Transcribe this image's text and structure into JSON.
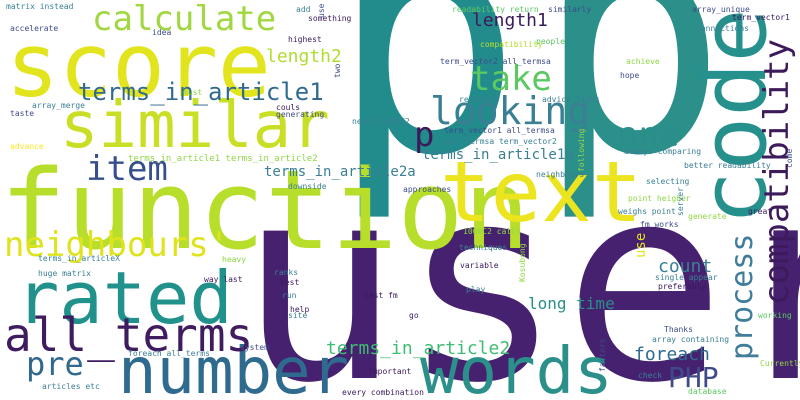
{
  "word_cloud": {
    "words": [
      {
        "text": "user",
        "color": "#46216f"
      },
      {
        "text": "p",
        "color": "#228c8d"
      },
      {
        "text": "p",
        "color": "#2b8f8a"
      },
      {
        "text": "function",
        "color": "#b7de2b"
      },
      {
        "text": "score",
        "color": "#e2e41d"
      },
      {
        "text": "text",
        "color": "#ece41f"
      },
      {
        "text": "similar",
        "color": "#c9df25"
      },
      {
        "text": "code",
        "color": "#26918c"
      },
      {
        "text": "rated",
        "color": "#21918c"
      },
      {
        "text": "words",
        "color": "#2b8f8a"
      },
      {
        "text": "number",
        "color": "#2e6b8e"
      },
      {
        "text": "all_terms",
        "color": "#3f1b60"
      },
      {
        "text": "calculate",
        "color": "#a1d740"
      },
      {
        "text": "compatibility",
        "color": "#3c1a5b"
      },
      {
        "text": "process",
        "color": "#3f7d9a"
      },
      {
        "text": "looking",
        "color": "#3a7f94"
      },
      {
        "text": "take",
        "color": "#5bc862"
      },
      {
        "text": "neighbours'",
        "color": "#dfe31e"
      },
      {
        "text": "one",
        "color": "#2a8e8a"
      },
      {
        "text": "item",
        "color": "#354e8c"
      },
      {
        "text": "pre",
        "color": "#30688e"
      },
      {
        "text": "terms_in_article1",
        "color": "#306a8e"
      },
      {
        "text": "PHP",
        "color": "#3f4a8a"
      },
      {
        "text": "foreach",
        "color": "#306a8e"
      },
      {
        "text": "length2",
        "color": "#b0dc32"
      },
      {
        "text": "length1",
        "color": "#3c1a5b"
      },
      {
        "text": "count",
        "color": "#3a7f94"
      },
      {
        "text": "p",
        "color": "#3c1a5b"
      },
      {
        "text": "use",
        "color": "#e7e31e"
      },
      {
        "text": "terms_in_article2",
        "color": "#3fbc73"
      },
      {
        "text": "long time",
        "color": "#2a8e8a"
      },
      {
        "text": "terms_in_article2a",
        "color": "#3a7f94"
      },
      {
        "text": "terms_in_article1a",
        "color": "#3a7f94"
      },
      {
        "text": "matrix instead",
        "color": "#3a7f94"
      },
      {
        "text": "accelerate",
        "color": "#3e4c8a"
      },
      {
        "text": "idea",
        "color": "#3e4c8a"
      },
      {
        "text": "highest",
        "color": "#3c1a5b"
      },
      {
        "text": "must",
        "color": "#8fd744"
      },
      {
        "text": "taste",
        "color": "#3e4c8a"
      },
      {
        "text": "array_merge",
        "color": "#3a7f94"
      },
      {
        "text": "advance",
        "color": "#fde725"
      },
      {
        "text": "add",
        "color": "#3a7f94"
      },
      {
        "text": "something",
        "color": "#3c1a5b"
      },
      {
        "text": "readability return",
        "color": "#5bc862"
      },
      {
        "text": "similarly",
        "color": "#3e4c8a"
      },
      {
        "text": "array_unique",
        "color": "#3e4c8a"
      },
      {
        "text": "term_vector1",
        "color": "#3c1a5b"
      },
      {
        "text": "connections",
        "color": "#3a7f94"
      },
      {
        "text": "people",
        "color": "#5bc862"
      },
      {
        "text": "compatibility",
        "color": "#b7de2b"
      },
      {
        "text": "term_vector2 all_termsa",
        "color": "#3e4c8a"
      },
      {
        "text": "achieve",
        "color": "#8fd744"
      },
      {
        "text": "hope",
        "color": "#3e4c8a"
      },
      {
        "text": "relation",
        "color": "#3a7f94"
      },
      {
        "text": "advice links",
        "color": "#3a7f94"
      },
      {
        "text": "needs 1000C2",
        "color": "#3a7f94"
      },
      {
        "text": "term_vector1 all_termsa",
        "color": "#3e4c8a"
      },
      {
        "text": "all_termsa term_vector2",
        "color": "#3a7f94"
      },
      {
        "text": "always comparing",
        "color": "#3a7f94"
      },
      {
        "text": "better readability",
        "color": "#3a7f94"
      },
      {
        "text": "couls",
        "color": "#3c1a5b"
      },
      {
        "text": "generating",
        "color": "#3e4c8a"
      },
      {
        "text": "terms_in_article1 terms_in_article2",
        "color": "#8fd744"
      },
      {
        "text": "downside",
        "color": "#3a7f94"
      },
      {
        "text": "approaches",
        "color": "#3e4c8a"
      },
      {
        "text": "neighbours",
        "color": "#3a7f94"
      },
      {
        "text": "selecting",
        "color": "#3a7f94"
      },
      {
        "text": "point heigher",
        "color": "#8fd744"
      },
      {
        "text": "weighs point",
        "color": "#3a7f94"
      },
      {
        "text": "server",
        "color": "#3a7f94"
      },
      {
        "text": "generate",
        "color": "#8fd744"
      },
      {
        "text": "great",
        "color": "#3c1a5b"
      },
      {
        "text": "1000C2 calls",
        "color": "#8fd744"
      },
      {
        "text": "fm works",
        "color": "#3e4c8a"
      },
      {
        "text": "techniques",
        "color": "#3a7f94"
      },
      {
        "text": "terms_in_articleX",
        "color": "#3a7f94"
      },
      {
        "text": "heavy",
        "color": "#8fd744"
      },
      {
        "text": "huge matrix",
        "color": "#3a7f94"
      },
      {
        "text": "way last",
        "color": "#3c1a5b"
      },
      {
        "text": "ranks",
        "color": "#3a7f94"
      },
      {
        "text": "best",
        "color": "#3c1a5b"
      },
      {
        "text": "variable",
        "color": "#3c1a5b"
      },
      {
        "text": "Kosubong",
        "color": "#8fd744"
      },
      {
        "text": "single appear",
        "color": "#3a7f94"
      },
      {
        "text": "preferably",
        "color": "#3c1a5b"
      },
      {
        "text": "play",
        "color": "#3a7f94"
      },
      {
        "text": "last fm",
        "color": "#3c1a5b"
      },
      {
        "text": "run",
        "color": "#3a7f94"
      },
      {
        "text": "help",
        "color": "#3c1a5b"
      },
      {
        "text": "site",
        "color": "#3a7f94"
      },
      {
        "text": "go",
        "color": "#3c1a5b"
      },
      {
        "text": "Thanks",
        "color": "#3e4c8a"
      },
      {
        "text": "array containing",
        "color": "#3a7f94"
      },
      {
        "text": "working",
        "color": "#5bc862"
      },
      {
        "text": "system",
        "color": "#3e4c8a"
      },
      {
        "text": "foreach all_terms",
        "color": "#3a7f94"
      },
      {
        "text": "factors",
        "color": "#3e4c8a"
      },
      {
        "text": "Currently",
        "color": "#8fd744"
      },
      {
        "text": "articles etc",
        "color": "#3a7f94"
      },
      {
        "text": "important",
        "color": "#3c1a5b"
      },
      {
        "text": "check",
        "color": "#3a7f94"
      },
      {
        "text": "every combination",
        "color": "#3c1a5b"
      },
      {
        "text": "database",
        "color": "#5bc862"
      },
      {
        "text": "come",
        "color": "#3e4c8a"
      },
      {
        "text": "use",
        "color": "#3e4c8a"
      },
      {
        "text": "following",
        "color": "#8fd744"
      },
      {
        "text": "two",
        "color": "#3e4c8a"
      }
    ]
  }
}
